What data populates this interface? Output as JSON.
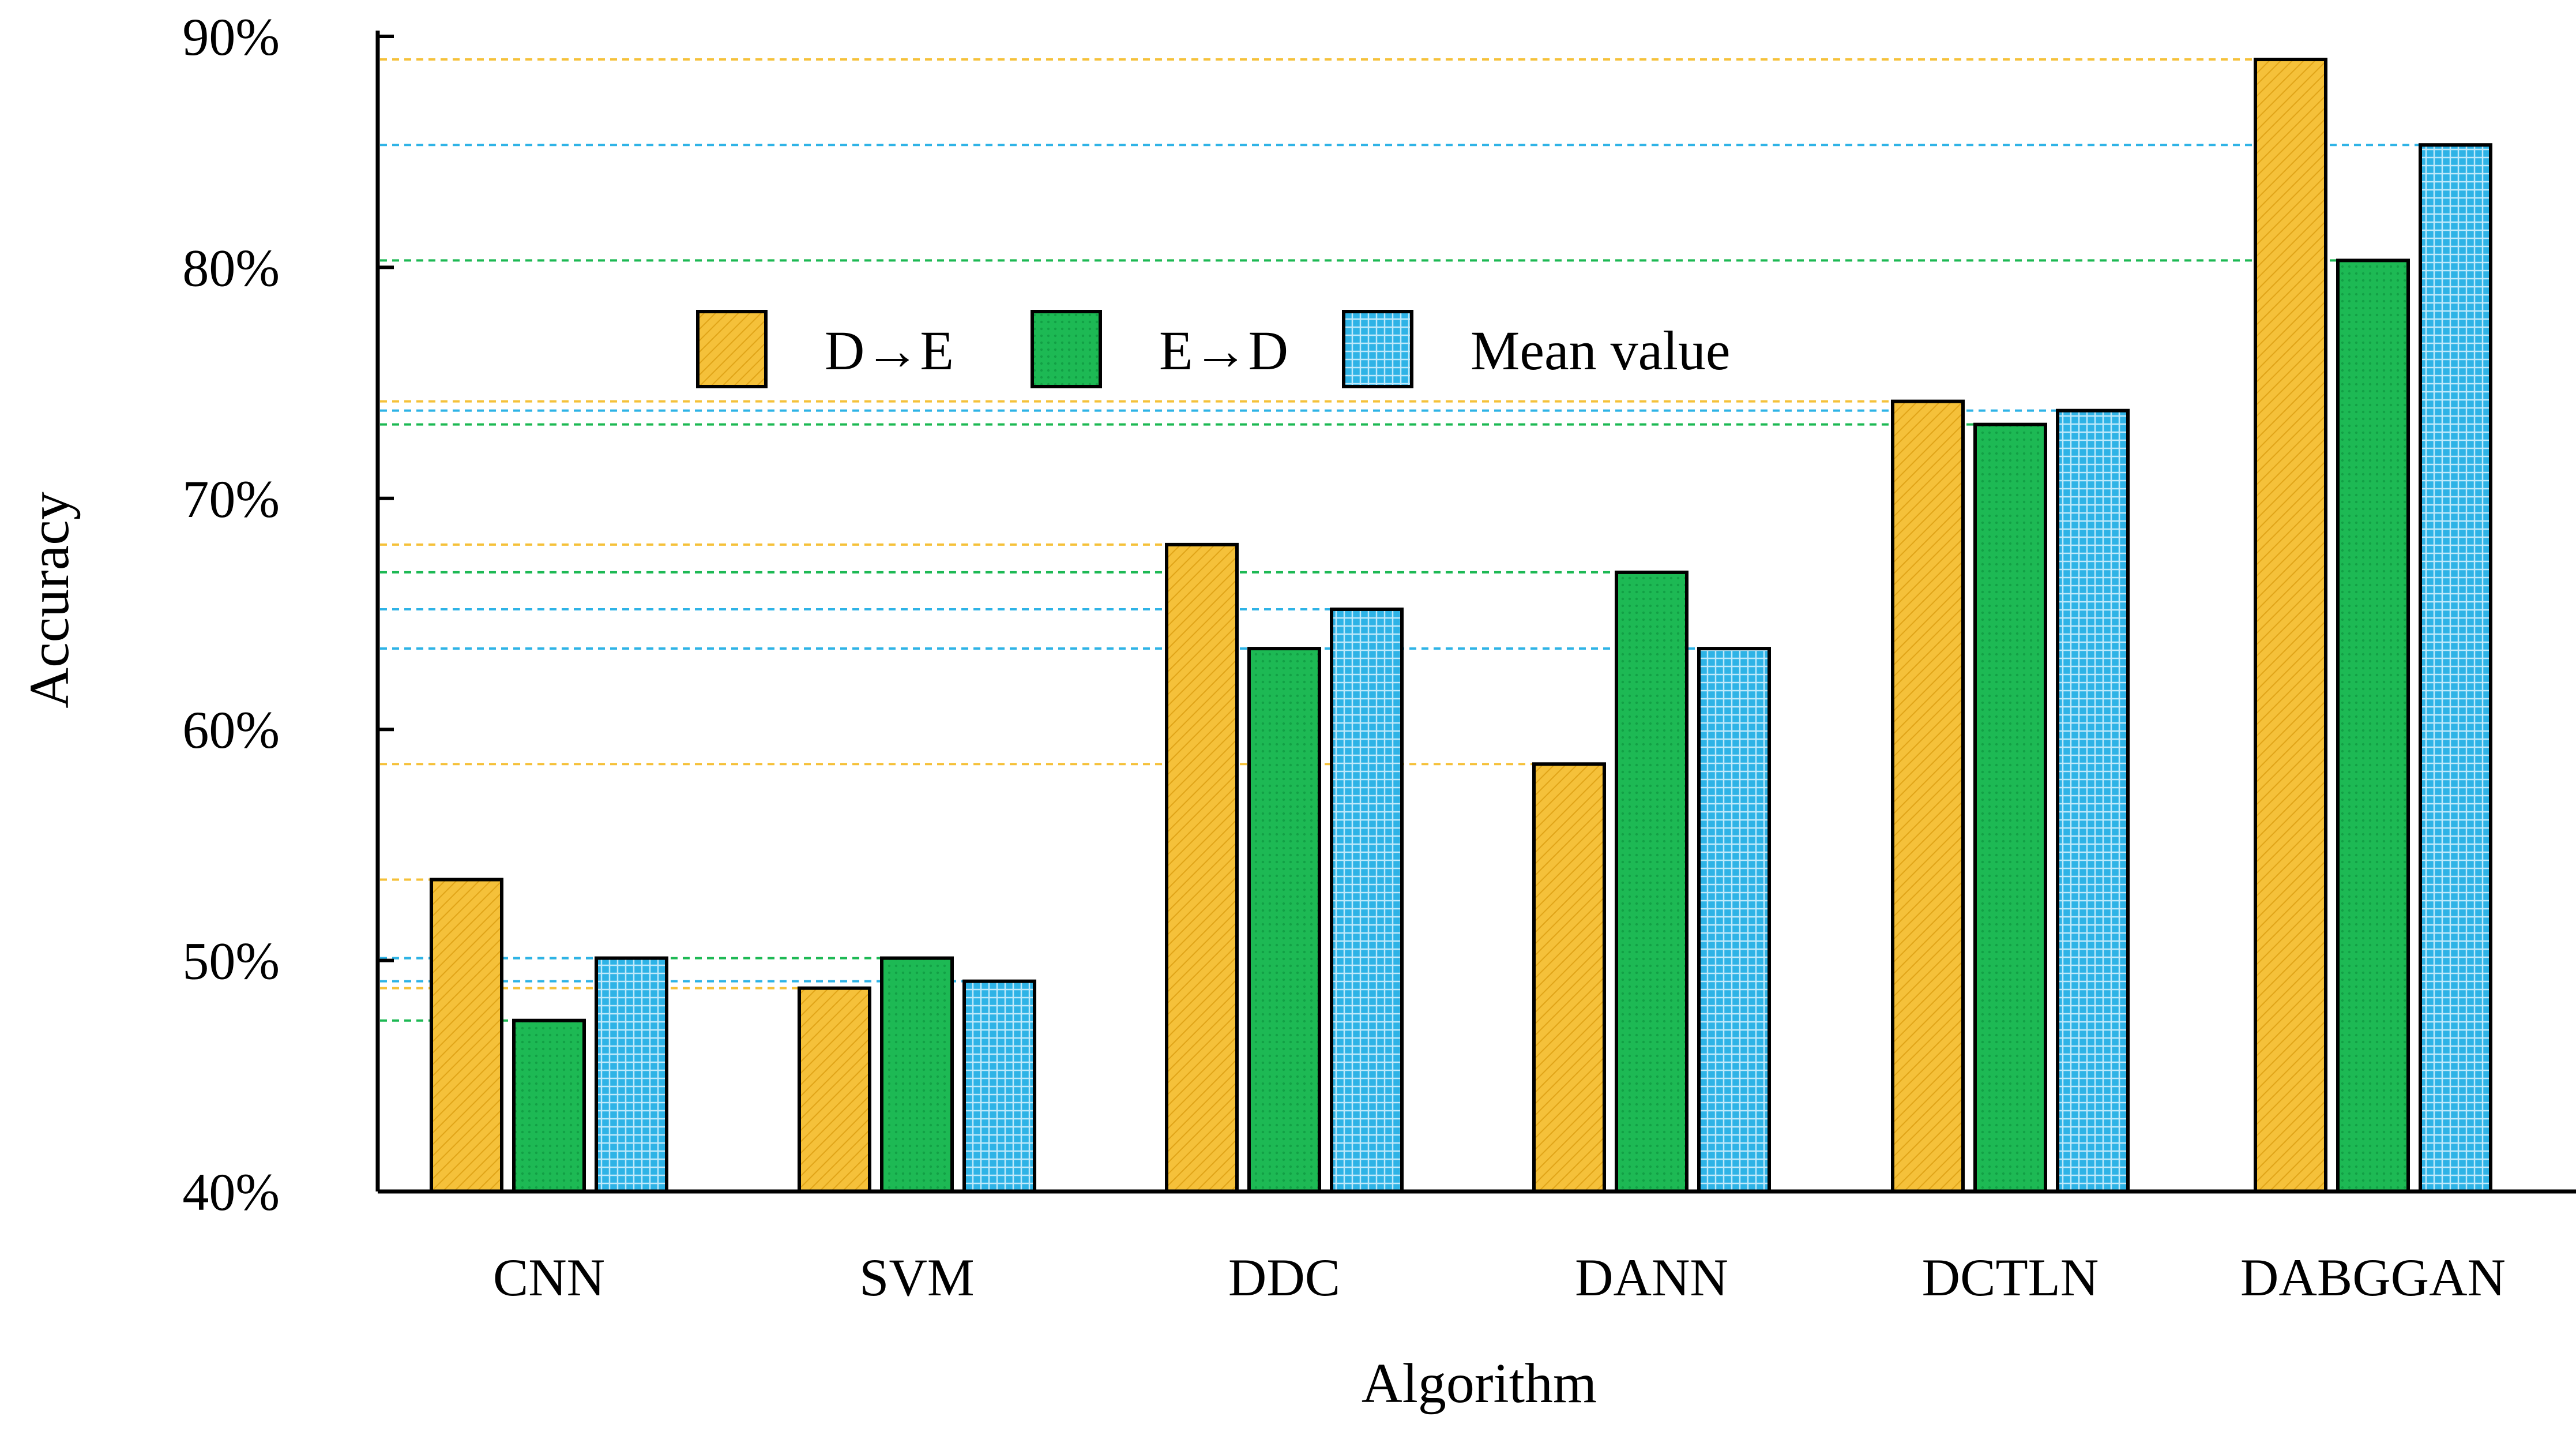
{
  "chart_data": {
    "type": "bar",
    "title": "",
    "xlabel": "Algorithm",
    "ylabel": "Accuracy",
    "categories": [
      "CNN",
      "SVM",
      "DDC",
      "DANN",
      "DCTLN",
      "DABGGAN"
    ],
    "series": [
      {
        "name": "D→E",
        "color": "#F5C13A",
        "values": [
          53.5,
          48.8,
          68.0,
          58.5,
          74.2,
          89.0
        ]
      },
      {
        "name": "E→D",
        "color": "#1DB954",
        "values": [
          47.4,
          50.1,
          63.5,
          66.8,
          73.2,
          80.3
        ]
      },
      {
        "name": "Mean value",
        "color": "#2EB3E6",
        "values": [
          50.1,
          49.1,
          65.2,
          63.5,
          73.8,
          85.3
        ]
      }
    ],
    "ylim": [
      40,
      90
    ],
    "yticks": [
      40,
      50,
      60,
      70,
      80,
      90
    ],
    "ytick_labels": [
      "40%",
      "50%",
      "60%",
      "70%",
      "80%",
      "90%"
    ],
    "grid": false,
    "reference_lines": "dashed lines from y-axis to each bar top, colored by series",
    "legend": "top-left inside plot"
  }
}
